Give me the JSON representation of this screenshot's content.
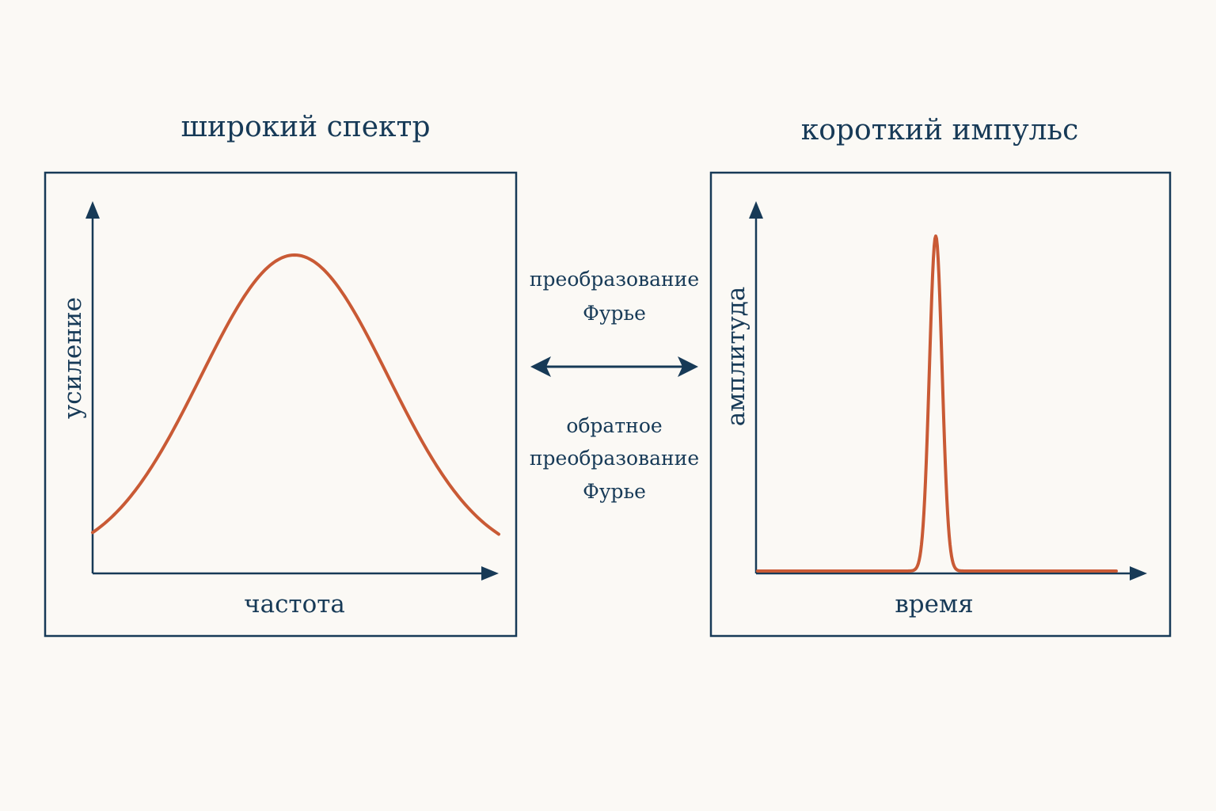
{
  "left_panel": {
    "title": "широкий спектр",
    "x_axis_label": "частота",
    "y_axis_label": "усиление",
    "curve": "broad-bell"
  },
  "right_panel": {
    "title": "короткий импульс",
    "x_axis_label": "время",
    "y_axis_label": "амплитуда",
    "curve": "narrow-pulse"
  },
  "transform": {
    "forward_label_lines": [
      "преобразование",
      "Фурье"
    ],
    "inverse_label_lines": [
      "обратное",
      "преобразование",
      "Фурье"
    ],
    "arrow": "double-headed"
  },
  "colors": {
    "background": "#fbf9f5",
    "ink": "#173a57",
    "curve": "#c95a35"
  }
}
